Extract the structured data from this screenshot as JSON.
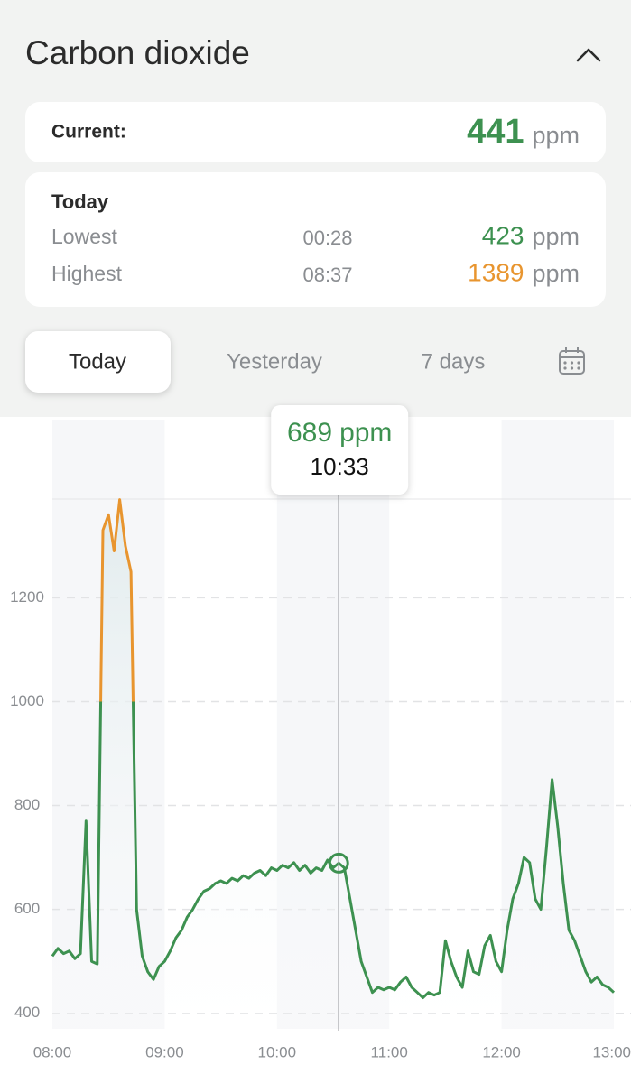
{
  "header": {
    "title": "Carbon dioxide"
  },
  "unit": "ppm",
  "current": {
    "label": "Current:",
    "value": 441
  },
  "today": {
    "title": "Today",
    "rows": [
      {
        "label": "Lowest",
        "time": "00:28",
        "value": 423
      },
      {
        "label": "Highest",
        "time": "08:37",
        "value": 1389
      }
    ]
  },
  "tabs": [
    "Today",
    "Yesterday",
    "7 days"
  ],
  "chart_data": {
    "type": "line",
    "x": [
      480,
      483,
      486,
      489,
      492,
      495,
      498,
      501,
      504,
      507,
      510,
      513,
      516,
      519,
      522,
      525,
      528,
      531,
      534,
      537,
      540,
      543,
      546,
      549,
      552,
      555,
      558,
      561,
      564,
      567,
      570,
      573,
      576,
      579,
      582,
      585,
      588,
      591,
      594,
      597,
      600,
      603,
      606,
      609,
      612,
      615,
      618,
      621,
      624,
      627,
      630,
      633,
      636,
      639,
      642,
      645,
      648,
      651,
      654,
      657,
      660,
      663,
      666,
      669,
      672,
      675,
      678,
      681,
      684,
      687,
      690,
      693,
      696,
      699,
      702,
      705,
      708,
      711,
      714,
      717,
      720,
      723,
      726,
      729,
      732,
      735,
      738,
      741,
      744,
      747,
      750,
      753,
      756,
      759,
      762,
      765,
      768,
      771,
      774,
      777,
      780
    ],
    "values": [
      510,
      525,
      515,
      520,
      505,
      515,
      770,
      500,
      495,
      1330,
      1360,
      1290,
      1389,
      1300,
      1250,
      600,
      510,
      480,
      465,
      490,
      500,
      520,
      545,
      560,
      585,
      600,
      620,
      635,
      640,
      650,
      655,
      650,
      660,
      655,
      665,
      660,
      670,
      675,
      665,
      680,
      675,
      685,
      680,
      690,
      675,
      685,
      670,
      680,
      675,
      695,
      680,
      689,
      680,
      620,
      560,
      500,
      470,
      440,
      450,
      445,
      450,
      445,
      460,
      470,
      450,
      440,
      430,
      440,
      435,
      440,
      540,
      500,
      470,
      450,
      520,
      480,
      475,
      530,
      550,
      500,
      480,
      560,
      620,
      650,
      700,
      690,
      620,
      600,
      720,
      850,
      760,
      650,
      560,
      540,
      510,
      480,
      460,
      470,
      455,
      450,
      440
    ],
    "color": "#3d9150",
    "high_color": "#e8952f",
    "high_threshold": 1000,
    "xlim": [
      480,
      780
    ],
    "xticks": [
      {
        "value": 480,
        "label": "08:00"
      },
      {
        "value": 540,
        "label": "09:00"
      },
      {
        "value": 600,
        "label": "10:00"
      },
      {
        "value": 660,
        "label": "11:00"
      },
      {
        "value": 720,
        "label": "12:00"
      },
      {
        "value": 780,
        "label": "13:00"
      }
    ],
    "ylim": [
      370,
      1390
    ],
    "yticks": [
      400,
      600,
      800,
      1000,
      1200
    ],
    "grid": true,
    "tooltip": {
      "x": {
        "value": 633,
        "label": "10:33"
      },
      "y": 689
    }
  }
}
